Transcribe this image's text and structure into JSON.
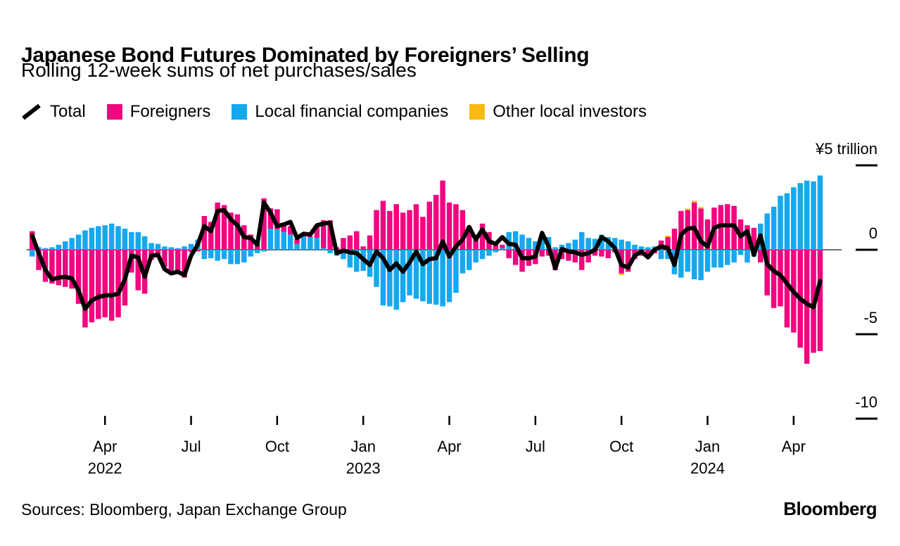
{
  "header": {
    "title": "Japanese Bond Futures Dominated by Foreigners’ Selling",
    "subtitle": "Rolling 12-week sums of net purchases/sales"
  },
  "legend": [
    {
      "label": "Total",
      "type": "line",
      "color": "#000000",
      "key": "total"
    },
    {
      "label": "Foreigners",
      "type": "swatch",
      "color": "#f2067f",
      "key": "foreigners"
    },
    {
      "label": "Local financial companies",
      "type": "swatch",
      "color": "#16a8ef",
      "key": "local"
    },
    {
      "label": "Other local investors",
      "type": "swatch",
      "color": "#fdb913",
      "key": "other"
    }
  ],
  "chart_data": {
    "type": "bar-line-combo",
    "unit": "trillion yen",
    "colors": {
      "foreigners": "#f2067f",
      "local": "#16a8ef",
      "other": "#fdb913",
      "total_line": "#000000",
      "zero_line": "#3d3d3d"
    },
    "y_axis": {
      "tick_labels": [
        "¥5 trillion",
        "0",
        "-5",
        "-10"
      ],
      "tick_values": [
        5,
        0,
        -5,
        -10
      ],
      "range": [
        -10.8,
        5.2
      ]
    },
    "x_axis": {
      "tick_weeks": [
        11,
        24,
        37,
        50,
        63,
        76,
        89,
        102,
        115
      ],
      "tick_labels": [
        "Apr",
        "Jul",
        "Oct",
        "Jan",
        "Apr",
        "Jul",
        "Oct",
        "Jan",
        "Apr"
      ],
      "year_labels": [
        {
          "week": 11,
          "text": "2022"
        },
        {
          "week": 50,
          "text": "2023"
        },
        {
          "week": 102,
          "text": "2024"
        }
      ]
    },
    "series": [
      {
        "name": "Foreigners",
        "key": "foreigners",
        "type": "bar",
        "color": "#f2067f",
        "values": [
          1.1,
          -1.2,
          -1.9,
          -2.0,
          -2.1,
          -2.2,
          -2.3,
          -3.2,
          -4.6,
          -4.3,
          -4.1,
          -4.0,
          -4.2,
          -4.0,
          -3.3,
          -1.35,
          -2.4,
          -2.6,
          -0.6,
          -0.45,
          -1.05,
          -1.35,
          -1.2,
          -1.65,
          -0.15,
          -0.1,
          2.0,
          1.65,
          2.8,
          2.65,
          2.2,
          2.1,
          1.45,
          0.9,
          0.35,
          3.05,
          1.2,
          1.2,
          0.55,
          0.5,
          0.3,
          0.1,
          0.05,
          0.7,
          1.65,
          1.75,
          0.15,
          0.7,
          0.85,
          1.1,
          0.2,
          0.85,
          2.35,
          2.9,
          2.3,
          2.7,
          2.2,
          2.35,
          2.7,
          1.95,
          2.85,
          3.25,
          4.1,
          2.8,
          2.7,
          2.35,
          1.4,
          0.9,
          1.55,
          1.05,
          0.35,
          0.2,
          -0.5,
          -0.9,
          -1.3,
          -0.95,
          -0.85,
          -0.4,
          -0.35,
          -1.2,
          -0.55,
          -0.65,
          -0.75,
          -1.2,
          -0.75,
          -0.35,
          -0.4,
          -0.5,
          -0.15,
          -1.4,
          -1.3,
          -0.55,
          -0.35,
          -0.4,
          -0.2,
          0.55,
          0.75,
          1.25,
          2.3,
          2.35,
          2.8,
          2.45,
          1.8,
          2.5,
          2.65,
          2.7,
          2.6,
          1.8,
          1.45,
          1.3,
          -0.75,
          -2.7,
          -3.45,
          -3.35,
          -4.6,
          -4.9,
          -5.8,
          -6.75,
          -6.1,
          -6.0
        ]
      },
      {
        "name": "Local financial companies",
        "key": "local",
        "type": "bar",
        "color": "#16a8ef",
        "values": [
          -0.4,
          0.15,
          0.1,
          0.15,
          0.3,
          0.5,
          0.7,
          0.9,
          1.15,
          1.3,
          1.4,
          1.45,
          1.55,
          1.4,
          1.25,
          1.05,
          1.05,
          0.8,
          0.4,
          0.35,
          0.2,
          0.15,
          0.1,
          0.2,
          0.35,
          0.6,
          -0.55,
          -0.5,
          -0.65,
          -0.55,
          -0.85,
          -0.85,
          -0.75,
          -0.4,
          -0.2,
          -0.1,
          1.25,
          1.2,
          1.05,
          0.9,
          0.35,
          0.8,
          0.75,
          0.7,
          0.1,
          -0.2,
          -0.35,
          -0.55,
          -1.05,
          -1.3,
          -1.25,
          -1.6,
          -2.2,
          -3.3,
          -3.35,
          -3.55,
          -3.1,
          -2.7,
          -2.9,
          -3.05,
          -3.2,
          -3.25,
          -3.35,
          -3.1,
          -2.55,
          -1.4,
          -1.2,
          -0.75,
          -0.55,
          -0.35,
          -0.15,
          0.1,
          1.05,
          1.1,
          0.9,
          0.7,
          0.5,
          0.9,
          0.75,
          0.15,
          0.3,
          0.4,
          0.6,
          1.05,
          0.7,
          0.65,
          0.9,
          0.75,
          0.7,
          0.6,
          0.5,
          0.3,
          0.2,
          0.15,
          0.2,
          -0.55,
          -0.55,
          -1.45,
          -1.65,
          -1.3,
          -1.75,
          -1.8,
          -1.3,
          -1.05,
          -1.05,
          -0.9,
          -0.75,
          -0.3,
          -0.75,
          -0.4,
          1.55,
          2.15,
          2.55,
          3.2,
          3.35,
          3.7,
          3.95,
          4.1,
          4.05,
          4.4
        ]
      },
      {
        "name": "Other local investors",
        "key": "other",
        "type": "bar",
        "color": "#fdb913",
        "values": [
          0,
          0,
          0,
          0,
          0,
          0,
          0,
          0,
          0,
          0,
          0,
          0,
          0,
          0,
          0,
          0,
          0,
          0,
          0,
          0,
          0,
          0,
          0,
          0,
          0,
          0,
          0,
          0,
          0,
          0,
          0,
          0,
          0,
          0,
          0,
          0,
          0,
          0,
          0,
          0,
          0,
          0,
          0,
          0,
          0,
          0,
          0,
          0,
          0,
          0,
          0,
          0,
          0,
          0,
          0,
          0,
          0,
          0,
          0,
          0,
          0,
          0,
          0,
          0,
          0,
          0,
          0,
          0,
          0,
          0,
          0,
          0,
          0,
          0,
          0,
          0,
          0,
          0,
          0,
          0,
          0,
          0,
          0,
          0,
          0,
          0,
          0,
          0,
          0,
          -0.1,
          0,
          0,
          0,
          0,
          0,
          0,
          0.08,
          0,
          0,
          0.08,
          0.1,
          0.08,
          0,
          0,
          0,
          0,
          0,
          0,
          0,
          0,
          0,
          0,
          0,
          0,
          0,
          0,
          0,
          0,
          0,
          0
        ]
      },
      {
        "name": "Total",
        "key": "total",
        "type": "line",
        "color": "#000000",
        "values": [
          0.85,
          -0.2,
          -1.2,
          -1.75,
          -1.65,
          -1.6,
          -1.7,
          -2.4,
          -3.5,
          -3.0,
          -2.8,
          -2.7,
          -2.7,
          -2.6,
          -1.75,
          -0.35,
          -0.45,
          -1.6,
          -0.35,
          -0.3,
          -1.15,
          -1.4,
          -1.3,
          -1.5,
          -0.35,
          0.3,
          1.4,
          1.1,
          2.3,
          2.35,
          1.8,
          1.45,
          0.75,
          0.7,
          0.3,
          2.8,
          2.2,
          1.4,
          1.5,
          1.65,
          0.7,
          0.95,
          0.9,
          1.45,
          1.55,
          1.6,
          -0.2,
          -0.05,
          -0.15,
          -0.2,
          -0.55,
          -0.9,
          -0.1,
          -0.5,
          -1.2,
          -0.8,
          -1.3,
          -0.75,
          -0.1,
          -0.85,
          -0.55,
          -0.5,
          0.5,
          -0.4,
          0.2,
          0.6,
          1.35,
          0.6,
          1.2,
          0.5,
          0.35,
          0.75,
          0.35,
          0.3,
          -0.5,
          -0.5,
          -0.4,
          1.0,
          0.2,
          -1.1,
          0.05,
          -0.1,
          -0.15,
          -0.3,
          -0.2,
          0.0,
          0.75,
          0.5,
          0.1,
          -0.9,
          -1.05,
          -0.35,
          -0.1,
          -0.45,
          0.0,
          0.2,
          0.1,
          -0.9,
          0.9,
          1.25,
          1.3,
          0.5,
          0.2,
          1.3,
          1.45,
          1.45,
          1.45,
          0.8,
          1.1,
          -0.3,
          0.85,
          -0.85,
          -1.25,
          -1.5,
          -2.0,
          -2.5,
          -2.9,
          -3.2,
          -3.4,
          -1.85
        ]
      }
    ]
  },
  "footer": {
    "sources": "Sources: Bloomberg, Japan Exchange Group",
    "brand": "Bloomberg"
  }
}
